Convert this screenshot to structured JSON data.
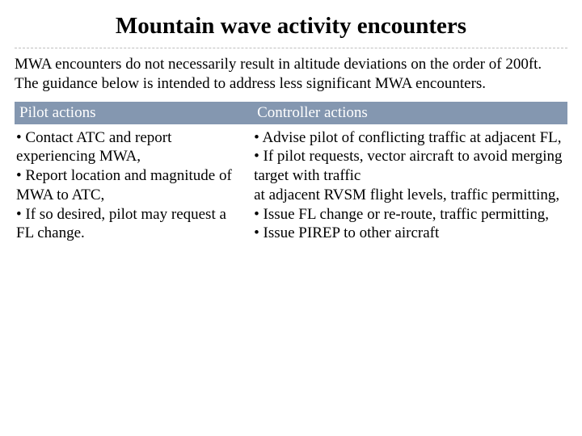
{
  "title": "Mountain wave activity encounters",
  "intro": "MWA encounters do not necessarily result in altitude deviations on the order of 200ft. The guidance below is intended to address less significant MWA encounters.",
  "table": {
    "columns": [
      "Pilot actions",
      "Controller actions"
    ],
    "column_widths_pct": [
      43,
      57
    ],
    "header_bg": "#8497b0",
    "header_fg": "#ffffff",
    "cell_fontsize_pt": 19,
    "pilot_text": "• Contact ATC and report experiencing MWA,\n• Report location and magnitude of MWA to ATC,\n• If so desired, pilot may request a FL change.",
    "controller_text": "• Advise pilot of conflicting traffic at adjacent FL,\n• If pilot requests, vector aircraft to avoid merging target with traffic\nat adjacent RVSM flight levels, traffic permitting,\n• Issue FL change or re-route, traffic permitting,\n• Issue PIREP to other aircraft"
  },
  "colors": {
    "background": "#ffffff",
    "text": "#000000",
    "divider": "#bfbfbf"
  }
}
